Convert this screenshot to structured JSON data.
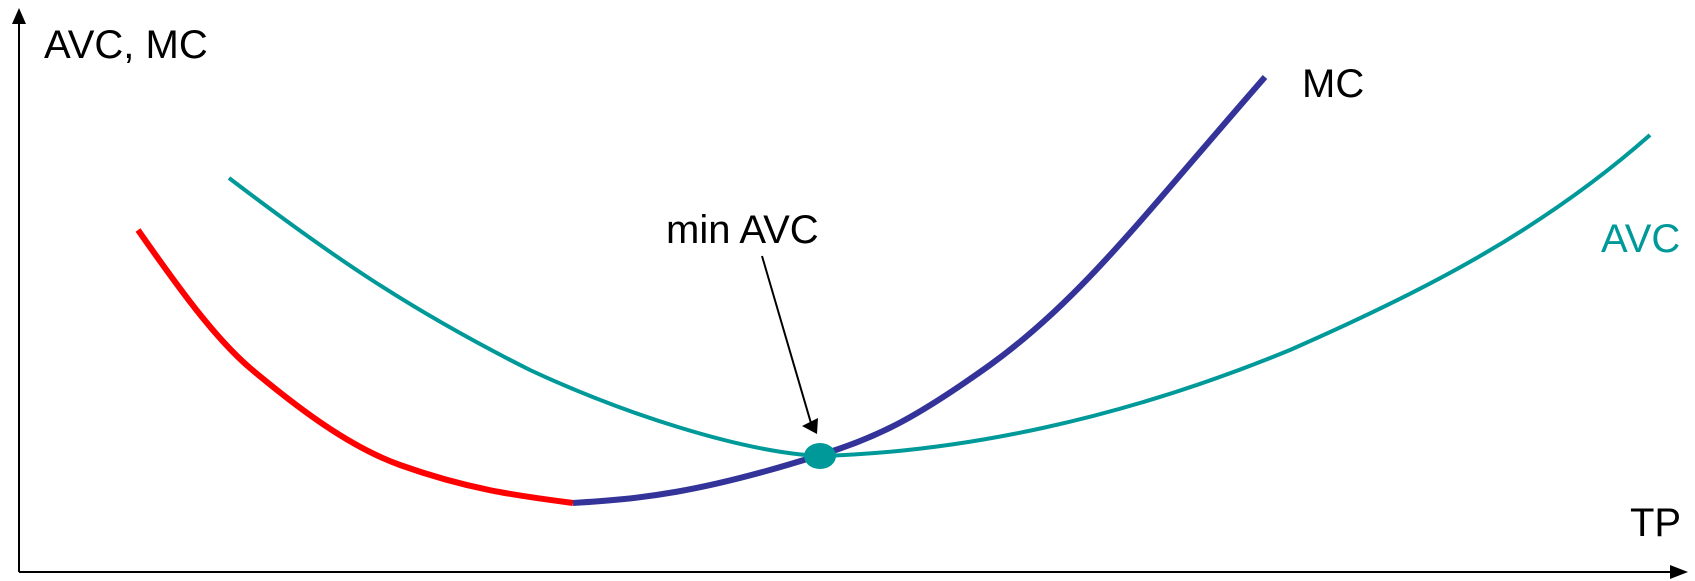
{
  "axes": {
    "y_label": "AVC, MC",
    "x_label": "TP"
  },
  "curves": {
    "mc_label": "MC",
    "avc_label": "AVC"
  },
  "annotation": {
    "text": "min AVC"
  },
  "colors": {
    "axis": "#000000",
    "mc_falling": "#ff0000",
    "mc_rising": "#333399",
    "avc": "#009999",
    "min_point": "#009999",
    "label_text": "#000000"
  }
}
